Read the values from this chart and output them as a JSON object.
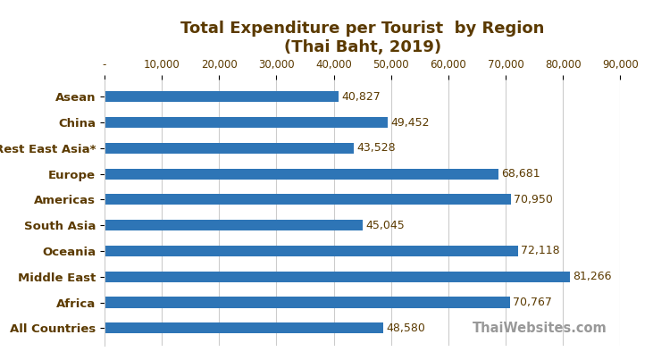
{
  "title": "Total Expenditure per Tourist  by Region\n(Thai Baht, 2019)",
  "categories": [
    "Asean",
    "China",
    "Rest East Asia*",
    "Europe",
    "Americas",
    "South Asia",
    "Oceania",
    "Middle East",
    "Africa",
    "All Countries"
  ],
  "values": [
    40827,
    49452,
    43528,
    68681,
    70950,
    45045,
    72118,
    81266,
    70767,
    48580
  ],
  "bar_color": "#2E75B6",
  "xlim": [
    0,
    90000
  ],
  "xticks": [
    0,
    10000,
    20000,
    30000,
    40000,
    50000,
    60000,
    70000,
    80000,
    90000
  ],
  "xtick_labels": [
    "-",
    "10,000",
    "20,000",
    "30,000",
    "40,000",
    "50,000",
    "60,000",
    "70,000",
    "80,000",
    "90,000"
  ],
  "watermark": "ThaiWebsites.com",
  "title_fontsize": 13,
  "label_fontsize": 9.5,
  "value_fontsize": 9,
  "tick_fontsize": 8.5,
  "background_color": "#FFFFFF",
  "grid_color": "#CCCCCC",
  "text_color": "#5B3A00",
  "watermark_color": "#999999"
}
